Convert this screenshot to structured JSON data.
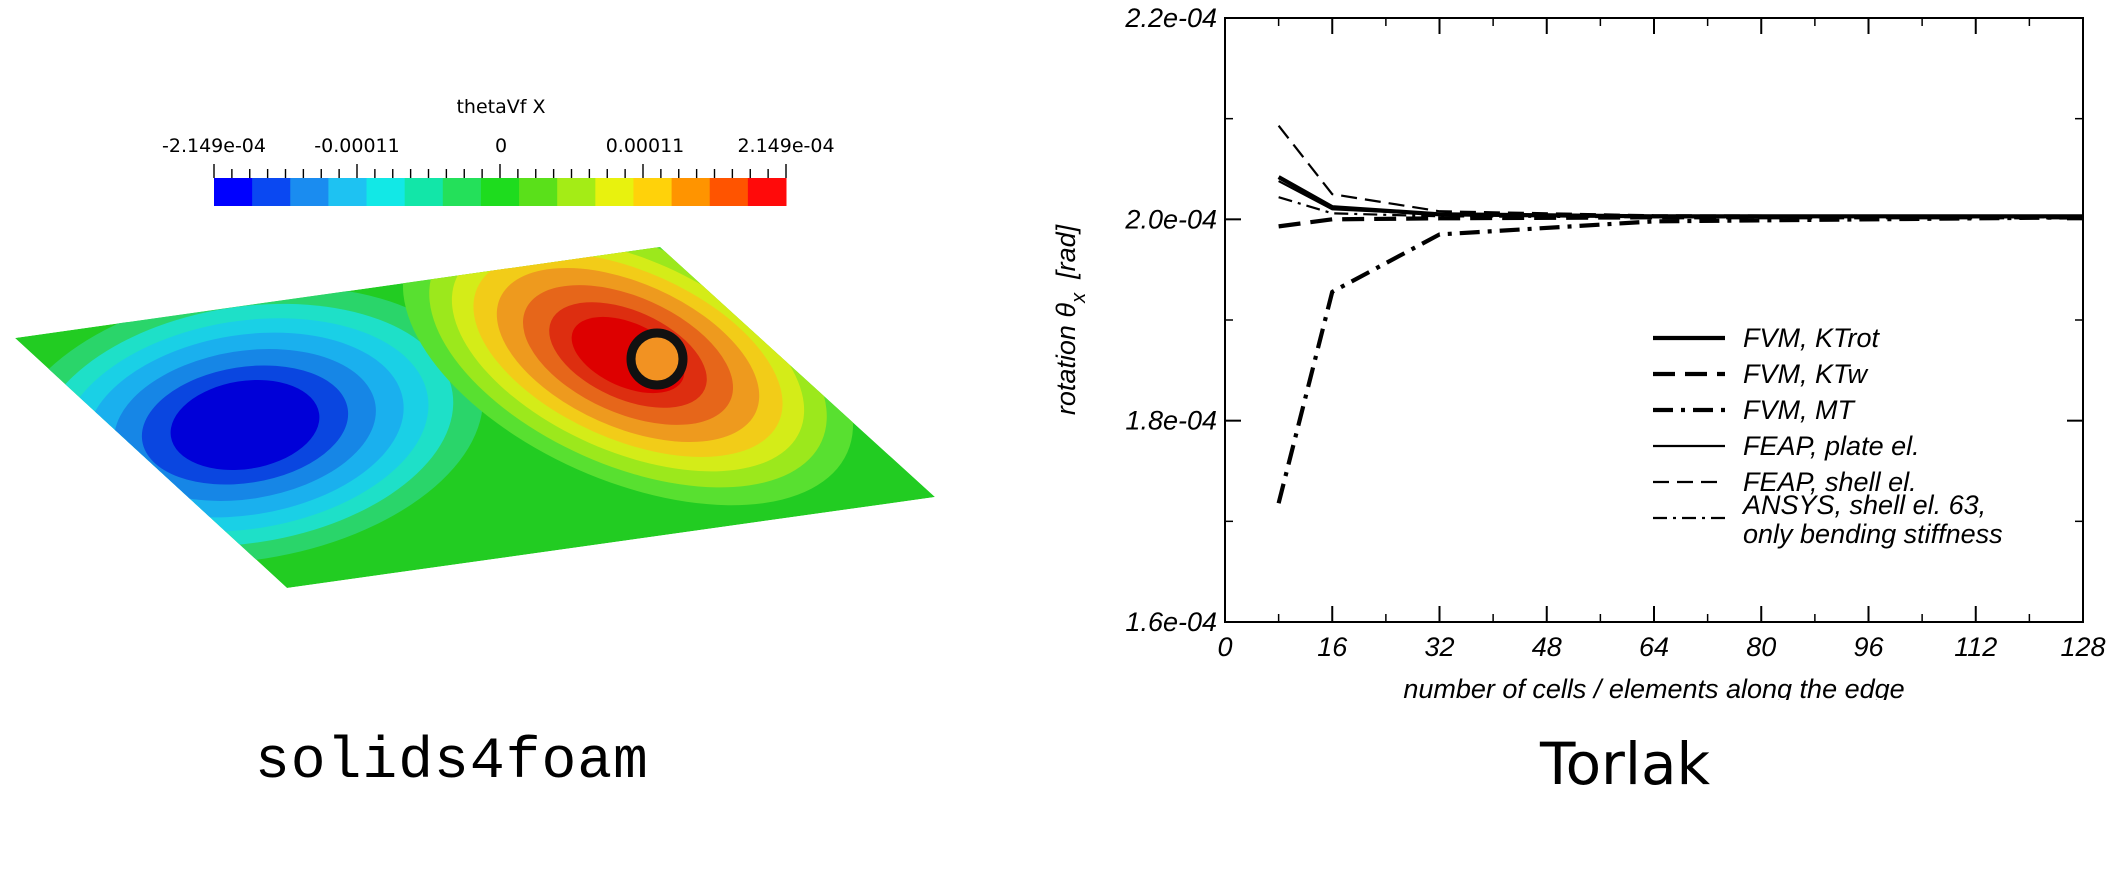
{
  "captions": {
    "left": "solids4foam",
    "right": "Torlak"
  },
  "colorbar": {
    "title": "thetaVf X",
    "tick_labels": [
      "-2.149e-04",
      "-0.00011",
      "0",
      "0.00011",
      "2.149e-04"
    ],
    "range": [
      -0.0002149,
      0.0002149
    ],
    "colors": [
      "#0000ff",
      "#0a48f2",
      "#1a8cf0",
      "#1ec2f2",
      "#12e8e6",
      "#12e6a8",
      "#24e05a",
      "#1edc1e",
      "#5ae01a",
      "#a4ec16",
      "#e8f20e",
      "#ffd20a",
      "#ff9400",
      "#ff5400",
      "#ff0a0a"
    ]
  },
  "contour": {
    "background_color": "#22cc22",
    "min_color": "#0000d8",
    "max_color": "#dd0000",
    "marker_color": "#f29222"
  },
  "chart_data": {
    "type": "line",
    "xlabel": "number of cells / elements along the edge",
    "ylabel_main": "rotation θ",
    "ylabel_sub": "x",
    "ylabel_unit": "[rad]",
    "xlim": [
      0,
      128
    ],
    "ylim": [
      0.00016,
      0.00022
    ],
    "x_ticks": [
      0,
      16,
      32,
      48,
      64,
      80,
      96,
      112,
      128
    ],
    "x_tick_labels": [
      "0",
      "16",
      "32",
      "48",
      "64",
      "80",
      "96",
      "112",
      "128"
    ],
    "y_ticks": [
      0.00016,
      0.00018,
      0.0002,
      0.00022
    ],
    "y_tick_labels": [
      "1.6e-04",
      "1.8e-04",
      "2.0e-04",
      "2.2e-04"
    ],
    "legend_position": "lower-right",
    "series": [
      {
        "name": "FVM, KTrot",
        "style": "thick-solid",
        "x": [
          8,
          16,
          32,
          64,
          128
        ],
        "y": [
          0.0002042,
          0.0002012,
          0.0002005,
          0.0002003,
          0.0002003
        ]
      },
      {
        "name": "FVM, KTw",
        "style": "thick-dash",
        "x": [
          8,
          16,
          32,
          64,
          128
        ],
        "y": [
          0.0001993,
          0.0002,
          0.0002001,
          0.0002002,
          0.0002002
        ]
      },
      {
        "name": "FVM, MT",
        "style": "thick-dashdot",
        "x": [
          8,
          16,
          32,
          64,
          128
        ],
        "y": [
          0.0001718,
          0.0001928,
          0.0001985,
          0.0001998,
          0.0002002
        ]
      },
      {
        "name": "FEAP, plate el.",
        "style": "thin-solid",
        "x": [
          8,
          16,
          32,
          64,
          128
        ],
        "y": [
          0.0002038,
          0.000201,
          0.0002005,
          0.0002003,
          0.0002003
        ]
      },
      {
        "name": "FEAP, shell el.",
        "style": "thin-dash",
        "x": [
          8,
          16,
          32,
          64,
          128
        ],
        "y": [
          0.0002093,
          0.0002025,
          0.0002008,
          0.0002004,
          0.0002003
        ]
      },
      {
        "name": "ANSYS, shell el. 63,\nonly bending stiffness",
        "style": "thin-dashdot",
        "x": [
          8,
          16,
          32,
          64,
          128
        ],
        "y": [
          0.0002022,
          0.0002006,
          0.0002003,
          0.0002002,
          0.0002002
        ]
      }
    ]
  }
}
